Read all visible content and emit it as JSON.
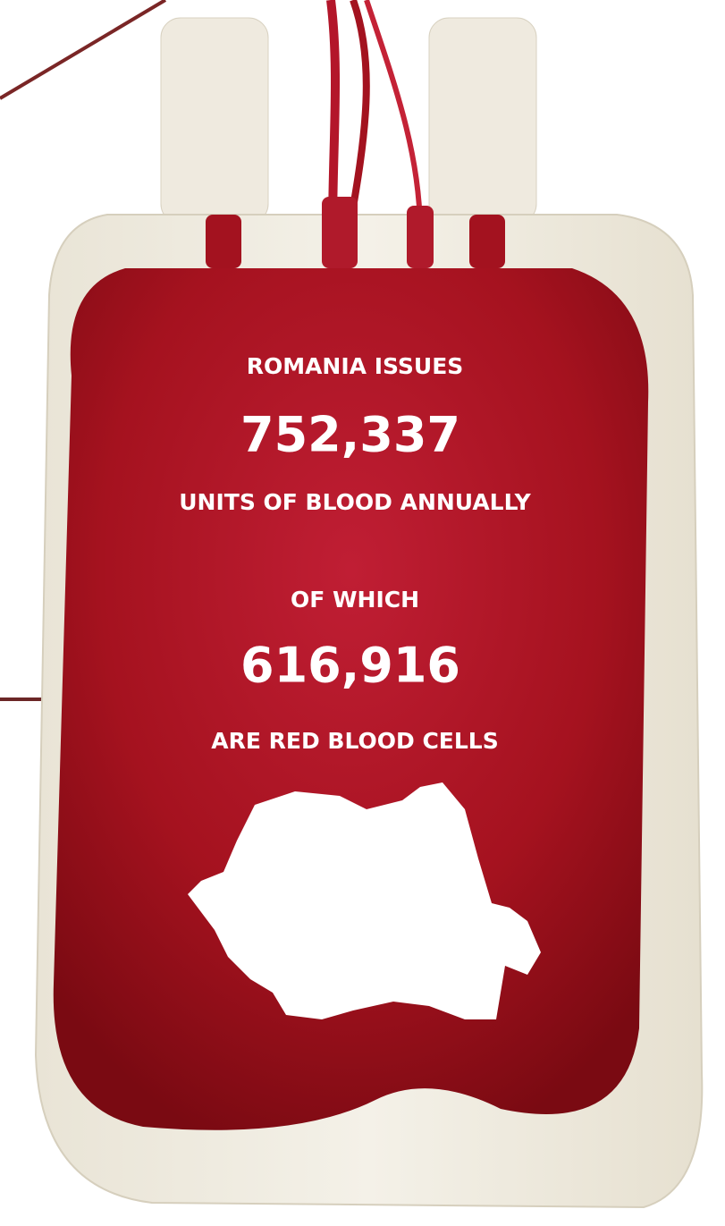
{
  "header": {
    "line1": "ROMANIA ISSUES",
    "number1": "752,337",
    "line2": "UNITS OF BLOOD ANNUALLY"
  },
  "detail": {
    "line1": "OF WHICH",
    "number2": "616,916",
    "line2": "ARE RED BLOOD CELLS"
  }
}
